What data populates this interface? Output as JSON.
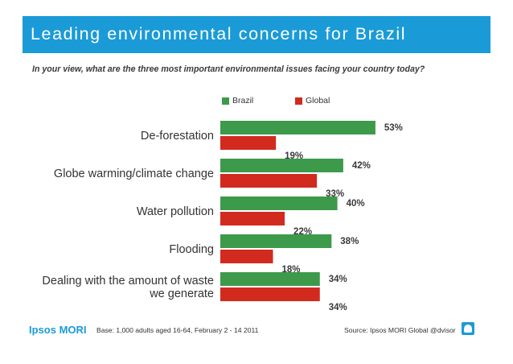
{
  "header": {
    "title": "Leading environmental concerns for Brazil",
    "subtitle": "In your view, what are the three most important environmental issues facing your country today?"
  },
  "legend": {
    "brazil_label": "Brazil",
    "global_label": "Global"
  },
  "colors": {
    "brand_blue": "#1a9bd7",
    "brazil_green": "#3d9a4b",
    "global_red": "#d32a1f"
  },
  "chart_data": {
    "type": "bar",
    "orientation": "horizontal",
    "title": "Leading environmental concerns for Brazil",
    "categories": [
      [
        "De-forestation"
      ],
      [
        "Globe warming/climate change"
      ],
      [
        "Water pollution"
      ],
      [
        "Flooding"
      ],
      [
        "Dealing with the amount of waste",
        "we generate"
      ]
    ],
    "series": [
      {
        "name": "Brazil",
        "color": "#3d9a4b",
        "values": [
          53,
          42,
          40,
          38,
          34
        ],
        "labels": [
          "53%",
          "42%",
          "40%",
          "38%",
          "34%"
        ]
      },
      {
        "name": "Global",
        "color": "#d32a1f",
        "values": [
          19,
          33,
          22,
          18,
          34
        ],
        "labels": [
          "19%",
          "33%",
          "22%",
          "18%",
          "34%"
        ]
      }
    ],
    "xlim": [
      0,
      100
    ],
    "unit": "%",
    "grid": false,
    "legend_position": "top-center"
  },
  "footer": {
    "logo": "Ipsos MORI",
    "base": "Base: 1,000 adults aged 16-64, February 2 - 14 2011",
    "source": "Source: Ipsos MORI Global @dvisor"
  }
}
